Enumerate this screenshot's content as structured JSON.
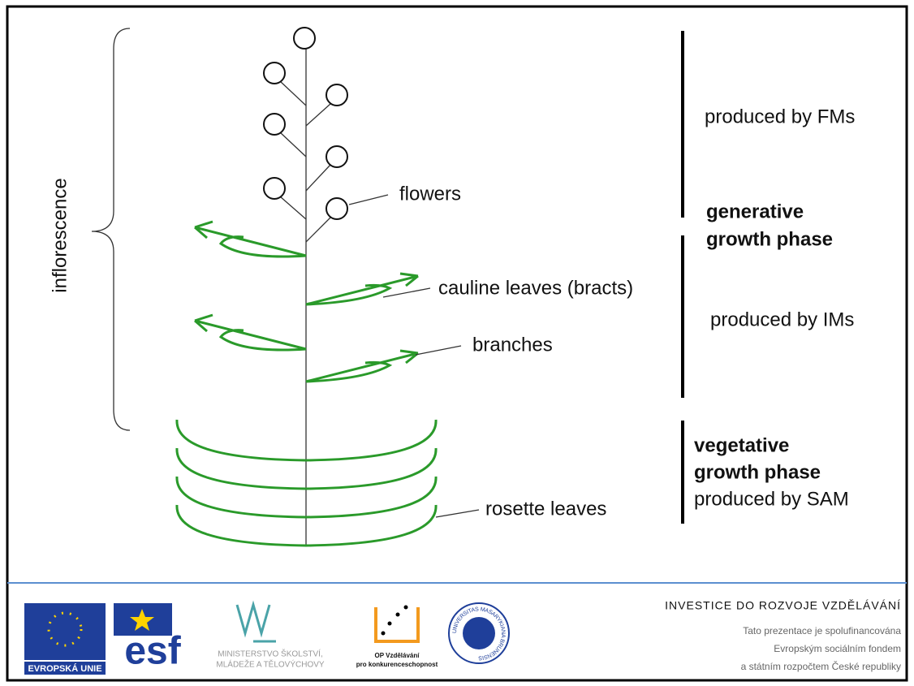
{
  "diagram": {
    "inflorescence": "inflorescence",
    "flowers": "flowers",
    "cauline": "cauline leaves (bracts)",
    "branches": "branches",
    "rosette": "rosette leaves",
    "fms": "produced by FMs",
    "generative": [
      "generative",
      "growth phase"
    ],
    "ims": "produced by IMs",
    "vegetative": [
      "vegetative",
      "growth phase"
    ],
    "sam": "produced by SAM"
  },
  "footer": {
    "eu": "EVROPSKÁ UNIE",
    "esf": "esf",
    "msmt": [
      "MINISTERSTVO ŠKOLSTVÍ,",
      "MLÁDEŽE A TĚLOVÝCHOVY"
    ],
    "op": [
      "OP Vzdělávání",
      "pro konkurenceschopnost"
    ],
    "mu": "UNIVERSITAS MASARYKIANA BRUNENSIS",
    "heading": "INVESTICE DO ROZVOJE VZDĚLÁVÁNÍ",
    "note": [
      "Tato prezentace je spolufinancována",
      "Evropským sociálním fondem",
      "a státním rozpočtem České republiky"
    ]
  }
}
